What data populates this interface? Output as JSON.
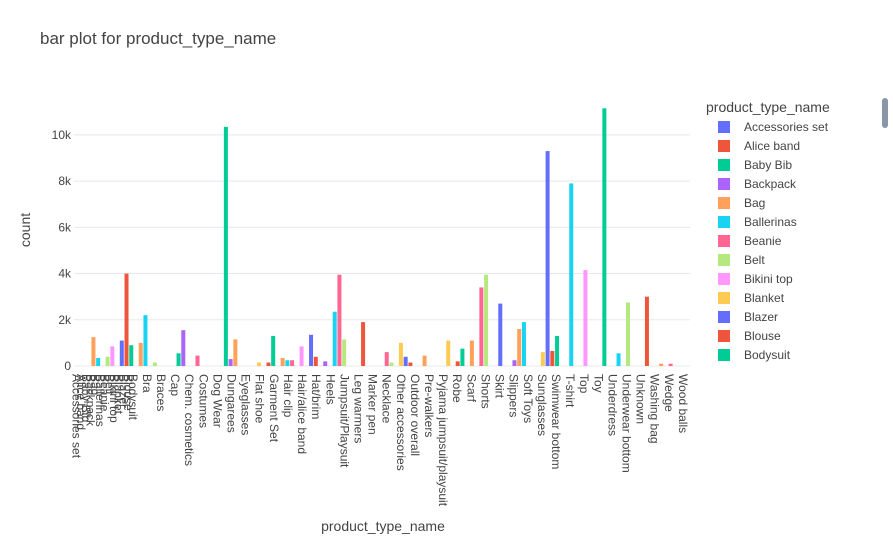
{
  "chart_data": {
    "type": "bar",
    "title": "bar plot for product_type_name",
    "x_label": "product_type_name",
    "y_label": "count",
    "legend_title": "product_type_name",
    "palette": [
      "#636efa",
      "#EF553B",
      "#00cc96",
      "#ab63fa",
      "#FFA15A",
      "#19d3f3",
      "#FF6692",
      "#B6E880",
      "#FF97FF",
      "#FECB52"
    ],
    "categories": [
      "Accessories set",
      "Alice band",
      "Baby Bib",
      "Backpack",
      "Bag",
      "Ballerinas",
      "Beanie",
      "Belt",
      "Bikini top",
      "Blanket",
      "Blazer",
      "Blouse",
      "Bodysuit",
      null,
      null,
      "Bra",
      null,
      null,
      "Braces",
      null,
      null,
      "Cap",
      null,
      null,
      "Chem. cosmetics",
      null,
      null,
      "Costumes",
      null,
      null,
      "Dog Wear",
      null,
      null,
      "Dungarees",
      null,
      null,
      "Eyeglasses",
      null,
      null,
      "Flat shoe",
      null,
      null,
      "Garment Set",
      null,
      null,
      "Hair clip",
      null,
      null,
      "Hair/alice band",
      null,
      null,
      "Hat/brim",
      null,
      null,
      "Heels",
      null,
      null,
      "Jumpsuit/Playsuit",
      null,
      null,
      "Leg warmers",
      null,
      null,
      "Marker pen",
      null,
      null,
      "Necklace",
      null,
      null,
      "Other accessories",
      null,
      null,
      "Outdoor overall",
      null,
      null,
      "Pre-walkers",
      null,
      null,
      "Pyjama jumpsuit/playsuit",
      null,
      null,
      "Robe",
      null,
      null,
      "Scarf",
      null,
      null,
      "Shorts",
      null,
      null,
      "Skirt",
      null,
      null,
      "Slippers",
      null,
      null,
      "Soft Toys",
      null,
      null,
      "Sunglasses",
      null,
      null,
      "Swimwear bottom",
      null,
      null,
      "T-shirt",
      null,
      null,
      "Top",
      null,
      null,
      "Toy",
      null,
      null,
      "Underdress",
      null,
      null,
      "Underwear bottom",
      null,
      null,
      "Unknown",
      null,
      null,
      "Washing bag",
      null,
      null,
      "Wedge",
      null,
      null,
      "Wood balls",
      null
    ],
    "values": [
      0,
      0,
      0,
      0,
      1250,
      350,
      0,
      400,
      850,
      0,
      1100,
      4000,
      900,
      0,
      1000,
      2200,
      0,
      150,
      0,
      0,
      0,
      0,
      550,
      1550,
      0,
      0,
      450,
      0,
      0,
      0,
      0,
      0,
      10350,
      300,
      1150,
      0,
      0,
      0,
      0,
      150,
      0,
      150,
      1300,
      0,
      350,
      250,
      250,
      0,
      850,
      0,
      1350,
      400,
      0,
      200,
      0,
      2350,
      3950,
      1150,
      0,
      0,
      0,
      1900,
      0,
      0,
      0,
      0,
      600,
      150,
      0,
      1000,
      400,
      150,
      0,
      0,
      450,
      0,
      0,
      0,
      0,
      1100,
      0,
      200,
      750,
      0,
      1100,
      0,
      3400,
      3950,
      0,
      0,
      2700,
      0,
      0,
      250,
      1600,
      1900,
      0,
      0,
      0,
      600,
      9300,
      650,
      1300,
      0,
      0,
      7900,
      0,
      0,
      4150,
      0,
      0,
      0,
      11150,
      0,
      0,
      550,
      0,
      2750,
      0,
      0,
      0,
      3000,
      0,
      0,
      100,
      0,
      100,
      0,
      0,
      0,
      0
    ],
    "ylim": [
      0,
      11770
    ],
    "yticks": [
      0,
      {
        "value": 2000,
        "label": "2k"
      },
      {
        "value": 4000,
        "label": "4k"
      },
      {
        "value": 6000,
        "label": "6k"
      },
      {
        "value": 8000,
        "label": "8k"
      },
      {
        "value": 10000,
        "label": "10k"
      }
    ],
    "grid": true
  }
}
